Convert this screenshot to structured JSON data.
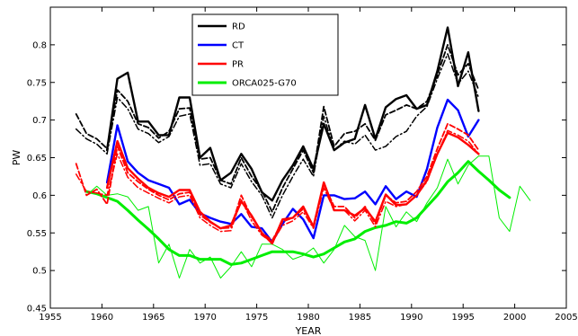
{
  "chart_data": {
    "type": "line",
    "xlabel": "YEAR",
    "ylabel": "PW",
    "xlim": [
      1955,
      2005
    ],
    "ylim": [
      0.45,
      0.85
    ],
    "xticks": [
      1955,
      1960,
      1965,
      1970,
      1975,
      1980,
      1985,
      1990,
      1995,
      2000,
      2005
    ],
    "yticks": [
      0.45,
      0.5,
      0.55,
      0.6,
      0.65,
      0.7,
      0.75,
      0.8
    ],
    "legend_position": "top-center",
    "grid": false,
    "series": [
      {
        "name": "RD",
        "color": "#000000",
        "style": "solid",
        "width": 2.4,
        "legend": true,
        "x": [
          1960.5,
          1961.5,
          1962.5,
          1963.5,
          1964.5,
          1965.5,
          1966.5,
          1967.5,
          1968.5,
          1969.5,
          1970.5,
          1971.5,
          1972.5,
          1973.5,
          1974.5,
          1975.5,
          1976.5,
          1977.5,
          1978.5,
          1979.5,
          1980.5,
          1981.5,
          1982.5,
          1983.5,
          1984.5,
          1985.5,
          1986.5,
          1987.5,
          1988.5,
          1989.5,
          1990.5,
          1991.5,
          1992.5,
          1993.5,
          1994.5,
          1995.5,
          1996.5
        ],
        "y": [
          0.66,
          0.755,
          0.763,
          0.698,
          0.698,
          0.68,
          0.68,
          0.73,
          0.73,
          0.65,
          0.663,
          0.62,
          0.63,
          0.655,
          0.635,
          0.604,
          0.593,
          0.62,
          0.64,
          0.665,
          0.635,
          0.695,
          0.66,
          0.67,
          0.675,
          0.72,
          0.675,
          0.717,
          0.728,
          0.733,
          0.715,
          0.72,
          0.765,
          0.823,
          0.745,
          0.79,
          0.712
        ]
      },
      {
        "name": "RD dashed",
        "color": "#000000",
        "style": "dashed",
        "width": 1.8,
        "legend": false,
        "x": [
          1957.5,
          1958.5,
          1959.5,
          1960.5,
          1961.5,
          1962.5,
          1963.5,
          1964.5,
          1965.5,
          1966.5,
          1967.5,
          1968.5,
          1969.5,
          1970.5,
          1971.5,
          1972.5,
          1973.5,
          1974.5,
          1975.5,
          1976.5,
          1977.5,
          1978.5,
          1979.5,
          1980.5,
          1981.5,
          1982.5,
          1983.5,
          1984.5,
          1985.5,
          1986.5,
          1987.5,
          1988.5,
          1989.5,
          1990.5,
          1991.5,
          1992.5,
          1993.5,
          1994.5,
          1995.5,
          1996.5
        ],
        "y": [
          0.708,
          0.682,
          0.675,
          0.662,
          0.74,
          0.725,
          0.695,
          0.69,
          0.676,
          0.685,
          0.715,
          0.716,
          0.648,
          0.65,
          0.62,
          0.615,
          0.65,
          0.625,
          0.606,
          0.578,
          0.61,
          0.635,
          0.66,
          0.63,
          0.718,
          0.665,
          0.682,
          0.685,
          0.695,
          0.673,
          0.707,
          0.713,
          0.72,
          0.715,
          0.725,
          0.76,
          0.8,
          0.76,
          0.775,
          0.74
        ]
      },
      {
        "name": "RD dashdot",
        "color": "#000000",
        "style": "dashdot",
        "width": 1.5,
        "legend": false,
        "x": [
          1957.5,
          1958.5,
          1959.5,
          1960.5,
          1961.5,
          1962.5,
          1963.5,
          1964.5,
          1965.5,
          1966.5,
          1967.5,
          1968.5,
          1969.5,
          1970.5,
          1971.5,
          1972.5,
          1973.5,
          1974.5,
          1975.5,
          1976.5,
          1977.5,
          1978.5,
          1979.5,
          1980.5,
          1981.5,
          1982.5,
          1983.5,
          1984.5,
          1985.5,
          1986.5,
          1987.5,
          1988.5,
          1989.5,
          1990.5,
          1991.5,
          1992.5,
          1993.5,
          1994.5,
          1995.5,
          1996.5
        ],
        "y": [
          0.688,
          0.675,
          0.668,
          0.655,
          0.73,
          0.715,
          0.688,
          0.682,
          0.67,
          0.678,
          0.705,
          0.708,
          0.64,
          0.642,
          0.615,
          0.61,
          0.642,
          0.618,
          0.6,
          0.57,
          0.6,
          0.625,
          0.648,
          0.625,
          0.705,
          0.66,
          0.672,
          0.668,
          0.68,
          0.66,
          0.665,
          0.678,
          0.685,
          0.705,
          0.718,
          0.755,
          0.788,
          0.748,
          0.765,
          0.73
        ]
      },
      {
        "name": "CT",
        "color": "#0000ff",
        "style": "solid",
        "width": 2.4,
        "legend": true,
        "x": [
          1960.5,
          1961.5,
          1962.5,
          1963.5,
          1964.5,
          1965.5,
          1966.5,
          1967.5,
          1968.5,
          1969.5,
          1970.5,
          1971.5,
          1972.5,
          1973.5,
          1974.5,
          1975.5,
          1976.5,
          1977.5,
          1978.5,
          1979.5,
          1980.5,
          1981.5,
          1982.5,
          1983.5,
          1984.5,
          1985.5,
          1986.5,
          1987.5,
          1988.5,
          1989.5,
          1990.5,
          1991.5,
          1992.5,
          1993.5,
          1994.5,
          1995.5,
          1996.5
        ],
        "y": [
          0.617,
          0.693,
          0.645,
          0.63,
          0.62,
          0.615,
          0.61,
          0.588,
          0.594,
          0.576,
          0.57,
          0.565,
          0.562,
          0.575,
          0.558,
          0.556,
          0.538,
          0.562,
          0.582,
          0.568,
          0.543,
          0.6,
          0.6,
          0.595,
          0.596,
          0.605,
          0.588,
          0.612,
          0.595,
          0.605,
          0.598,
          0.635,
          0.69,
          0.727,
          0.713,
          0.678,
          0.7
        ]
      },
      {
        "name": "PR",
        "color": "#ff0000",
        "style": "solid",
        "width": 2.4,
        "legend": true,
        "x": [
          1960.5,
          1961.5,
          1962.5,
          1963.5,
          1964.5,
          1965.5,
          1966.5,
          1967.5,
          1968.5,
          1969.5,
          1970.5,
          1971.5,
          1972.5,
          1973.5,
          1974.5,
          1975.5,
          1976.5,
          1977.5,
          1978.5,
          1979.5,
          1980.5,
          1981.5,
          1982.5,
          1983.5,
          1984.5,
          1985.5,
          1986.5,
          1987.5,
          1988.5,
          1989.5,
          1990.5,
          1991.5,
          1992.5,
          1993.5,
          1994.5,
          1995.5,
          1996.5
        ],
        "y": [
          0.61,
          0.672,
          0.636,
          0.622,
          0.61,
          0.603,
          0.598,
          0.607,
          0.607,
          0.578,
          0.565,
          0.556,
          0.56,
          0.592,
          0.573,
          0.55,
          0.536,
          0.568,
          0.57,
          0.585,
          0.558,
          0.617,
          0.58,
          0.58,
          0.573,
          0.583,
          0.565,
          0.601,
          0.587,
          0.588,
          0.6,
          0.62,
          0.655,
          0.683,
          0.677,
          0.667,
          0.655
        ]
      },
      {
        "name": "PR dashed",
        "color": "#ff0000",
        "style": "dashed",
        "width": 1.8,
        "legend": false,
        "x": [
          1957.5,
          1958.5,
          1959.5,
          1960.5,
          1961.5,
          1962.5,
          1963.5,
          1964.5,
          1965.5,
          1966.5,
          1967.5,
          1968.5,
          1969.5,
          1970.5,
          1971.5,
          1972.5,
          1973.5,
          1974.5,
          1975.5,
          1976.5,
          1977.5,
          1978.5,
          1979.5,
          1980.5,
          1981.5,
          1982.5,
          1983.5,
          1984.5,
          1985.5,
          1986.5,
          1987.5,
          1988.5,
          1989.5,
          1990.5,
          1991.5,
          1992.5,
          1993.5,
          1994.5,
          1995.5,
          1996.5
        ],
        "y": [
          0.642,
          0.6,
          0.608,
          0.588,
          0.665,
          0.63,
          0.618,
          0.608,
          0.6,
          0.594,
          0.602,
          0.604,
          0.574,
          0.564,
          0.556,
          0.557,
          0.6,
          0.571,
          0.55,
          0.54,
          0.565,
          0.57,
          0.582,
          0.56,
          0.615,
          0.585,
          0.585,
          0.57,
          0.585,
          0.562,
          0.6,
          0.59,
          0.592,
          0.605,
          0.625,
          0.662,
          0.695,
          0.688,
          0.68,
          0.66
        ]
      },
      {
        "name": "PR dashdot",
        "color": "#ff0000",
        "style": "dashdot",
        "width": 1.5,
        "legend": false,
        "x": [
          1957.5,
          1958.5,
          1959.5,
          1960.5,
          1961.5,
          1962.5,
          1963.5,
          1964.5,
          1965.5,
          1966.5,
          1967.5,
          1968.5,
          1969.5,
          1970.5,
          1971.5,
          1972.5,
          1973.5,
          1974.5,
          1975.5,
          1976.5,
          1977.5,
          1978.5,
          1979.5,
          1980.5,
          1981.5,
          1982.5,
          1983.5,
          1984.5,
          1985.5,
          1986.5,
          1987.5,
          1988.5,
          1989.5,
          1990.5,
          1991.5,
          1992.5,
          1993.5,
          1994.5,
          1995.5,
          1996.5
        ],
        "y": [
          0.628,
          0.605,
          0.603,
          0.6,
          0.655,
          0.624,
          0.61,
          0.603,
          0.596,
          0.59,
          0.598,
          0.6,
          0.57,
          0.56,
          0.552,
          0.553,
          0.594,
          0.566,
          0.547,
          0.537,
          0.56,
          0.566,
          0.578,
          0.556,
          0.61,
          0.58,
          0.58,
          0.566,
          0.58,
          0.558,
          0.592,
          0.585,
          0.588,
          0.6,
          0.618,
          0.655,
          0.686,
          0.68,
          0.672,
          0.655
        ]
      },
      {
        "name": "ORCA025-G70",
        "color": "#00ee00",
        "style": "solid",
        "width": 3.0,
        "legend": true,
        "x": [
          1958.5,
          1959.5,
          1960.5,
          1961.5,
          1962.5,
          1963.5,
          1964.5,
          1965.5,
          1966.5,
          1967.5,
          1968.5,
          1969.5,
          1970.5,
          1971.5,
          1972.5,
          1973.5,
          1974.5,
          1975.5,
          1976.5,
          1977.5,
          1978.5,
          1979.5,
          1980.5,
          1981.5,
          1982.5,
          1983.5,
          1984.5,
          1985.5,
          1986.5,
          1987.5,
          1988.5,
          1989.5,
          1990.5,
          1991.5,
          1992.5,
          1993.5,
          1994.5,
          1995.5,
          1996.5,
          1997.5,
          1998.5,
          1999.5
        ],
        "y": [
          0.605,
          0.602,
          0.597,
          0.592,
          0.58,
          0.567,
          0.555,
          0.542,
          0.528,
          0.52,
          0.52,
          0.515,
          0.515,
          0.515,
          0.508,
          0.51,
          0.515,
          0.52,
          0.525,
          0.525,
          0.525,
          0.522,
          0.518,
          0.522,
          0.53,
          0.538,
          0.542,
          0.552,
          0.557,
          0.56,
          0.565,
          0.563,
          0.57,
          0.585,
          0.6,
          0.618,
          0.63,
          0.645,
          0.632,
          0.62,
          0.607,
          0.597
        ]
      },
      {
        "name": "ORCA025-G70 annual",
        "color": "#00ee00",
        "style": "solid",
        "width": 1.0,
        "legend": false,
        "x": [
          1958.5,
          1959.5,
          1960.5,
          1961.5,
          1962.5,
          1963.5,
          1964.5,
          1965.5,
          1966.5,
          1967.5,
          1968.5,
          1969.5,
          1970.5,
          1971.5,
          1972.5,
          1973.5,
          1974.5,
          1975.5,
          1976.5,
          1977.5,
          1978.5,
          1979.5,
          1980.5,
          1981.5,
          1982.5,
          1983.5,
          1984.5,
          1985.5,
          1986.5,
          1987.5,
          1988.5,
          1989.5,
          1990.5,
          1991.5,
          1992.5,
          1993.5,
          1994.5,
          1995.5,
          1996.5,
          1997.5,
          1998.5,
          1999.5,
          2000.5,
          2001.5
        ],
        "y": [
          0.6,
          0.612,
          0.6,
          0.602,
          0.598,
          0.58,
          0.585,
          0.51,
          0.535,
          0.49,
          0.528,
          0.51,
          0.518,
          0.49,
          0.505,
          0.525,
          0.505,
          0.535,
          0.535,
          0.528,
          0.515,
          0.52,
          0.53,
          0.51,
          0.528,
          0.56,
          0.545,
          0.54,
          0.5,
          0.585,
          0.558,
          0.578,
          0.565,
          0.59,
          0.61,
          0.648,
          0.615,
          0.64,
          0.652,
          0.652,
          0.57,
          0.552,
          0.612,
          0.593
        ]
      }
    ]
  }
}
